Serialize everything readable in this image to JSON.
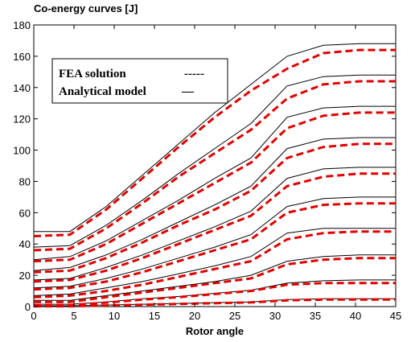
{
  "chart_data": {
    "type": "line",
    "title": "Co-energy curves [J]",
    "xlabel": "Rotor angle",
    "ylabel": "",
    "xlim": [
      0,
      45
    ],
    "ylim": [
      0,
      180
    ],
    "xticks": [
      0,
      5,
      10,
      15,
      20,
      25,
      30,
      35,
      40,
      45
    ],
    "yticks": [
      0,
      20,
      40,
      60,
      80,
      100,
      120,
      140,
      160,
      180
    ],
    "x": [
      0,
      4.5,
      9,
      13.5,
      18,
      22.5,
      27,
      31.5,
      36,
      40.5,
      45
    ],
    "legend": {
      "position": "top-left",
      "entries": [
        {
          "label": "FEA solution",
          "style": "dashed",
          "color": "#000000",
          "symbol": "-----"
        },
        {
          "label": "Analytical model",
          "style": "solid",
          "color": "#000000",
          "symbol": "—"
        }
      ]
    },
    "plotted_series_colors": {
      "FEA solution": "#e00000",
      "Analytical model": "#000000"
    },
    "series": [
      {
        "values": [
          48,
          48,
          64,
          84,
          104,
          124,
          142,
          160,
          167,
          168,
          168
        ],
        "fea": [
          45,
          46,
          62,
          82,
          102,
          121,
          138,
          152,
          162,
          164,
          164
        ]
      },
      {
        "values": [
          38,
          39,
          52,
          68,
          85,
          101,
          117,
          141,
          147,
          148,
          148
        ],
        "fea": [
          36,
          37,
          50,
          66,
          83,
          98,
          113,
          133,
          142,
          144,
          144
        ]
      },
      {
        "values": [
          30,
          32,
          42,
          55,
          68,
          82,
          95,
          121,
          127,
          128,
          128
        ],
        "fea": [
          29,
          30,
          40,
          53,
          66,
          79,
          92,
          114,
          122,
          124,
          124
        ]
      },
      {
        "values": [
          23,
          25,
          33,
          43,
          54,
          65,
          77,
          101,
          107,
          108,
          108
        ],
        "fea": [
          22,
          23,
          31,
          41,
          52,
          62,
          74,
          95,
          102,
          104,
          104
        ]
      },
      {
        "values": [
          17,
          18,
          25,
          33,
          42,
          51,
          61,
          82,
          88,
          89,
          89
        ],
        "fea": [
          16,
          17,
          23,
          31,
          40,
          49,
          58,
          77,
          83,
          85,
          85
        ]
      },
      {
        "values": [
          12,
          13,
          18,
          24,
          31,
          38,
          46,
          64,
          69,
          70,
          70
        ],
        "fea": [
          11,
          12,
          16,
          22,
          29,
          36,
          43,
          60,
          65,
          66,
          66
        ]
      },
      {
        "values": [
          7,
          8,
          12,
          16,
          21,
          26,
          32,
          47,
          50,
          50,
          50
        ],
        "fea": [
          6,
          7,
          10,
          14,
          19,
          24,
          29,
          43,
          47,
          48,
          48
        ]
      },
      {
        "values": [
          4,
          4,
          7,
          10,
          13,
          16,
          20,
          29,
          32,
          33,
          33
        ],
        "fea": [
          3,
          3,
          6,
          9,
          12,
          15,
          18,
          27,
          30,
          31,
          31
        ]
      },
      {
        "values": [
          1.5,
          1.5,
          3,
          5,
          6.5,
          8.5,
          10.5,
          15,
          16.5,
          17,
          17
        ],
        "fea": [
          1,
          1,
          2.5,
          4.5,
          6,
          8,
          10,
          14,
          15,
          15,
          15
        ]
      },
      {
        "values": [
          0.5,
          0.5,
          1,
          1.5,
          2,
          2.5,
          3,
          4.5,
          5,
          5,
          5
        ],
        "fea": [
          0.2,
          0.2,
          0.7,
          1.2,
          1.7,
          2.2,
          2.7,
          4,
          4.5,
          4.5,
          4.5
        ]
      }
    ]
  }
}
